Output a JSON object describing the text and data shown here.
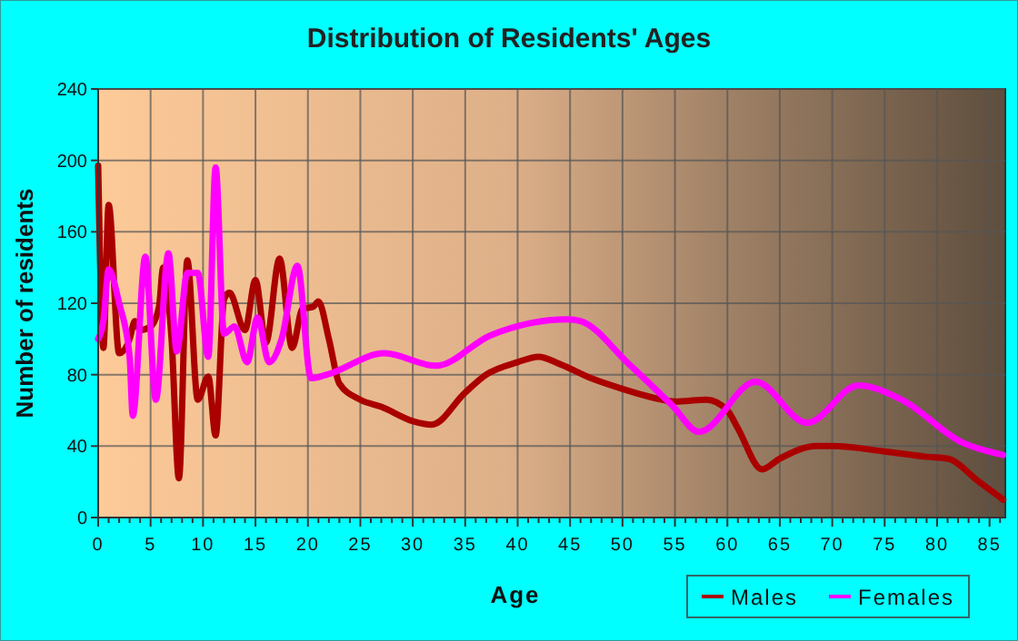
{
  "chart_data": {
    "type": "line",
    "title": "Distribution of Residents' Ages",
    "xlabel": "Age",
    "ylabel": "Number of residents",
    "xlim": [
      0,
      86.5
    ],
    "xticks": [
      0,
      5,
      10,
      15,
      20,
      25,
      30,
      35,
      40,
      45,
      50,
      55,
      60,
      65,
      70,
      75,
      80,
      85
    ],
    "ylim": [
      0,
      240
    ],
    "yticks": [
      0,
      40,
      80,
      120,
      160,
      200,
      240
    ],
    "grid": true,
    "legend": "bottom right",
    "line_style": "solid",
    "marker": "none",
    "series": [
      {
        "name": "Males",
        "color": "#aa0000",
        "x": [
          0,
          0.5,
          1,
          2,
          3,
          3.5,
          4,
          5,
          5.8,
          6.2,
          7,
          7.7,
          8.5,
          9.5,
          10.5,
          11.2,
          12,
          12.5,
          14,
          15,
          16,
          17.3,
          18.5,
          19.5,
          20.5,
          21,
          22,
          23,
          25,
          27,
          30,
          31.8,
          35,
          37,
          40,
          42,
          44,
          47,
          50,
          53,
          55,
          58,
          60,
          61,
          63.3,
          65,
          68.5,
          70,
          75,
          79,
          81,
          84,
          86.3
        ],
        "values": [
          197,
          95,
          175,
          92,
          100,
          110,
          105,
          107,
          118,
          140,
          100,
          22,
          144,
          66,
          79,
          46,
          122,
          126,
          105,
          133,
          98,
          145,
          95,
          117,
          118,
          121,
          100,
          75,
          66,
          62,
          54,
          52,
          70,
          80,
          87,
          90,
          86,
          78,
          72,
          67,
          65,
          66,
          60,
          50,
          27,
          33,
          40,
          40,
          37,
          34,
          33,
          20,
          10
        ]
      },
      {
        "name": "Females",
        "color": "#ff00ff",
        "x": [
          0,
          0.5,
          1,
          2,
          3,
          3.3,
          4.5,
          5.5,
          6.7,
          7.5,
          8.5,
          9.5,
          10.5,
          11.2,
          12,
          13,
          14.2,
          15.2,
          16.3,
          17.5,
          19,
          20.3,
          21.8,
          27.3,
          32.2,
          37.4,
          44.8,
          46,
          50.6,
          54.7,
          57.3,
          62.7,
          67.6,
          72.5,
          76.6,
          82.4,
          86.3
        ],
        "values": [
          100,
          110,
          139,
          120,
          90,
          57,
          146,
          66,
          148,
          93,
          137,
          137,
          90,
          196,
          103,
          107,
          87,
          112,
          87,
          100,
          141,
          78,
          80,
          92,
          85,
          102,
          111,
          110,
          86,
          63,
          48,
          76,
          53,
          74,
          66,
          42,
          35
        ]
      }
    ]
  }
}
